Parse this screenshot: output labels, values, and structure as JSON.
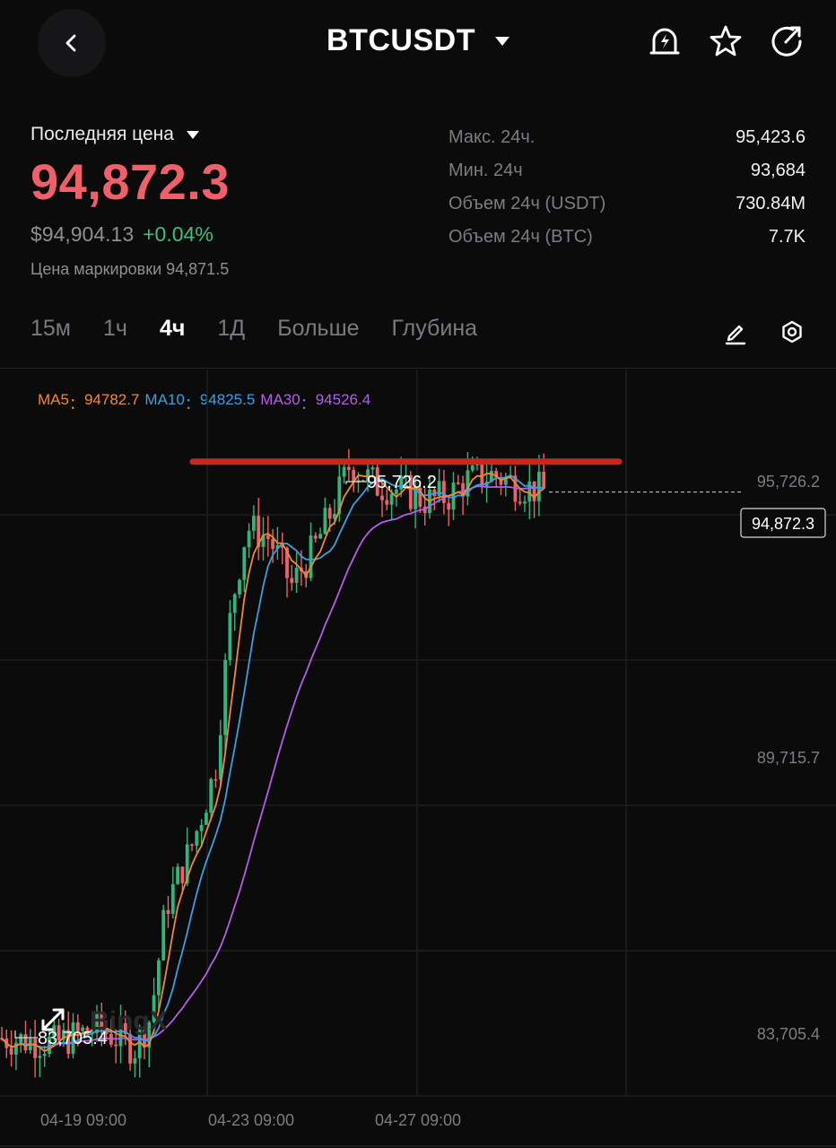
{
  "header": {
    "symbol": "BTCUSDT",
    "icons": [
      "back-arrow-icon",
      "price-alert-icon",
      "star-icon",
      "share-icon"
    ]
  },
  "price": {
    "last_label": "Последняя цена",
    "last_price": "94,872.3",
    "usd_price": "$94,904.13",
    "change": "+0.04%",
    "mark_label": "Цена маркировки",
    "mark_price": "94,871.5"
  },
  "stats": [
    {
      "label": "Макс. 24ч.",
      "value": "95,423.6"
    },
    {
      "label": "Мин. 24ч",
      "value": "93,684"
    },
    {
      "label": "Объем 24ч (USDT)",
      "value": "730.84M"
    },
    {
      "label": "Объем 24ч (BTC)",
      "value": "7.7K"
    }
  ],
  "tabs": [
    {
      "label": "15м",
      "active": false
    },
    {
      "label": "1ч",
      "active": false
    },
    {
      "label": "4ч",
      "active": true
    },
    {
      "label": "1Д",
      "active": false
    },
    {
      "label": "Больше",
      "active": false
    },
    {
      "label": "Глубина",
      "active": false
    }
  ],
  "ma": [
    {
      "name": "MA5",
      "value": "94782.7",
      "color": "#f08a2e"
    },
    {
      "name": "MA10",
      "value": "94825.5",
      "color": "#3aa0e0"
    },
    {
      "name": "MA30",
      "value": "94526.4",
      "color": "#b45ee8"
    }
  ],
  "colors": {
    "up": "#2fb67c",
    "down": "#f0606a",
    "ma5": "#f08a2e",
    "ma10": "#3aa0e0",
    "ma30": "#b45ee8",
    "resistance_line": "#c8261e"
  },
  "chart_data": {
    "type": "candlestick",
    "interval": "4ч",
    "y_axis_ticks": [
      "95,726.2",
      "89,715.7",
      "83,705.4"
    ],
    "x_axis_ticks": [
      "04-19 09:00",
      "04-23 09:00",
      "04-27 09:00"
    ],
    "high_marker": "95,726.2",
    "low_marker": "83,705.4",
    "current_price_tag": "94,872.3",
    "watermark": "BingX",
    "resistance_level": 95450,
    "ylim": [
      83400,
      97200
    ]
  }
}
